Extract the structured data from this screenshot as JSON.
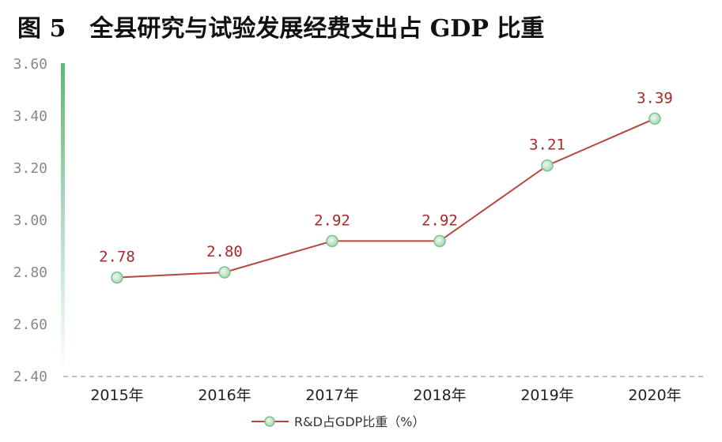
{
  "chart_data": {
    "type": "line",
    "title": "图 5　全县研究与试验发展经费支出占 GDP 比重",
    "categories": [
      "2015年",
      "2016年",
      "2017年",
      "2018年",
      "2019年",
      "2020年"
    ],
    "series": [
      {
        "name": "R&D占GDP比重（%）",
        "values": [
          2.78,
          2.8,
          2.92,
          2.92,
          3.21,
          3.39
        ]
      }
    ],
    "data_labels": [
      "2.78",
      "2.80",
      "2.92",
      "2.92",
      "3.21",
      "3.39"
    ],
    "yticks": [
      "2.40",
      "2.60",
      "2.80",
      "3.00",
      "3.20",
      "3.40",
      "3.60"
    ],
    "ylim": [
      2.4,
      3.6
    ],
    "grid": false,
    "legend_position": "bottom",
    "colors": {
      "line": "#b5473f",
      "marker_fill": "#cfe9d4",
      "marker_stroke": "#7cc08e",
      "axis_bar": "#5cb878",
      "label": "#a52a2a"
    }
  }
}
